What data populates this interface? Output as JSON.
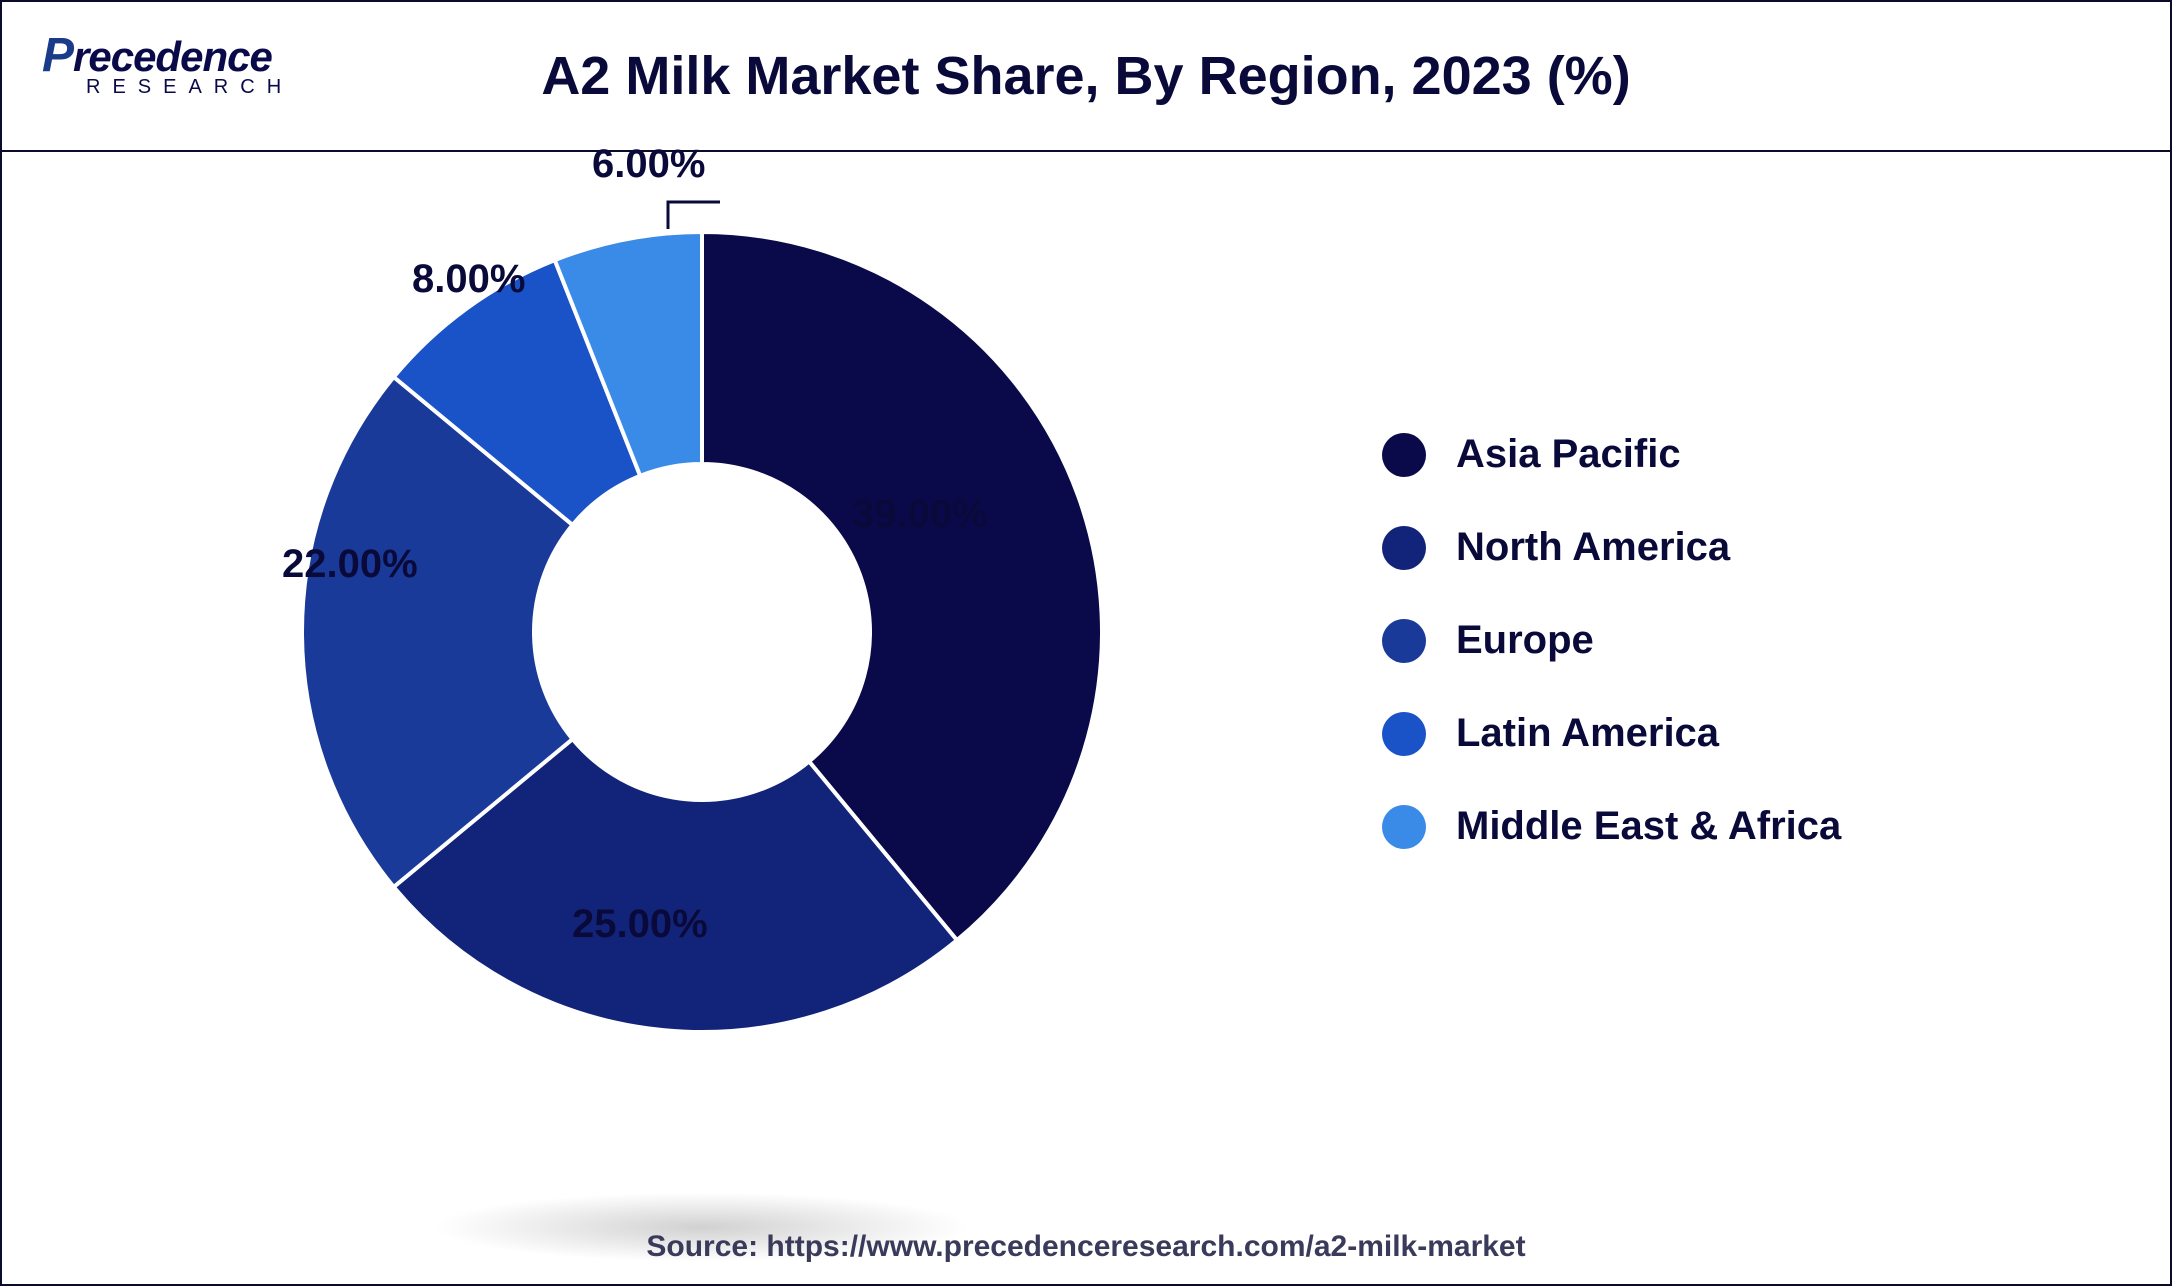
{
  "header": {
    "logo_main_prefix": "P",
    "logo_main_rest": "recedence",
    "logo_sub": "RESEARCH",
    "title": "A2 Milk Market Share, By Region, 2023 (%)"
  },
  "chart": {
    "type": "donut",
    "inner_radius_ratio": 0.42,
    "background_color": "#ffffff",
    "label_fontsize": 40,
    "label_color": "#0a0a3a",
    "legend_fontsize": 40,
    "stroke_color": "#ffffff",
    "stroke_width": 4,
    "slices": [
      {
        "label": "Asia Pacific",
        "value": 39.0,
        "display": "39.00%",
        "color": "#0a0a4a"
      },
      {
        "label": "North America",
        "value": 25.0,
        "display": "25.00%",
        "color": "#12247a"
      },
      {
        "label": "Europe",
        "value": 22.0,
        "display": "22.00%",
        "color": "#1a3a9a"
      },
      {
        "label": "Latin America",
        "value": 8.0,
        "display": "8.00%",
        "color": "#1a52c8"
      },
      {
        "label": "Middle East & Africa",
        "value": 6.0,
        "display": "6.00%",
        "color": "#3a8ae8"
      }
    ],
    "source_text": "Source: https://www.precedenceresearch.com/a2-milk-market"
  }
}
